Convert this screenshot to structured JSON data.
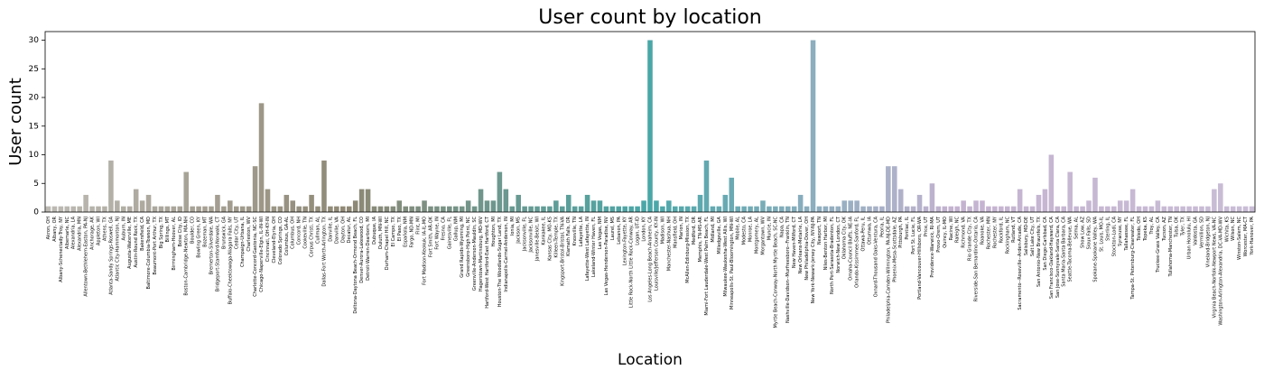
{
  "chart_data": {
    "type": "bar",
    "title": "User count by location",
    "xlabel": "Location",
    "ylabel": "User count",
    "categories": [
      "Akron, OH",
      "Albany, OR",
      "Albany-Schenectady-Troy, NY",
      "Albemarle, NC",
      "Alexandria, LA",
      "Alexandria, MN",
      "Allentown-Bethlehem-Easton, PA-NJ",
      "Anchorage, AK",
      "Appleton, WI",
      "Athens, TX",
      "Atlanta-Sandy Springs-Roswell, GA",
      "Atlantic City-Hammonton, NJ",
      "Auburn, IN",
      "Augusta-Waterville, ME",
      "Austin-Round Rock, TX",
      "Bakersfield, CA",
      "Baltimore-Columbia-Towson, MD",
      "Beaumont-Port Arthur, TX",
      "Big Spring, TX",
      "Billings, MT",
      "Birmingham-Hoover, AL",
      "Boise City, ID",
      "Boston-Cambridge-Newton, MA-NH",
      "Boulder, CO",
      "Bowling Green, KY",
      "Bozeman, MT",
      "Bremerton-Silverdale, WA",
      "Bridgeport-Stamford-Norwalk, CT",
      "Brunswick, GA",
      "Buffalo-Cheektowaga-Niagara Falls, NY",
      "Cedar City, UT",
      "Champaign-Urbana, IL",
      "Charleston, WV",
      "Charlotte-Concord-Gastonia, NC-SC",
      "Chicago-Naperville-Elgin, IL-IN-WI",
      "Cincinnati, OH-KY-IN",
      "Cleveland-Elyria, OH",
      "Colorado Springs, CO",
      "Columbus, GA-AL",
      "Columbus, OH",
      "Concord, NH",
      "Cookeville, TN",
      "Corpus Christi, TX",
      "Cullman, AL",
      "Dallas-Fort Worth-Arlington, TX",
      "Danville, IL",
      "Danville, VA",
      "Dayton, OH",
      "Decatur, AL",
      "Deltona-Daytona Beach-Ormond Beach, FL",
      "Denver-Aurora-Lakewood, CO",
      "Detroit-Warren-Dearborn, MI",
      "Dubuque, IA",
      "Duluth, MN-WI",
      "Durham-Chapel Hill, NC",
      "El Campo, TX",
      "El Paso, TX",
      "Española, NM",
      "Fargo, ND-MN",
      "Flint, MI",
      "Fort Madison-Keokuk, IA-IL-MO",
      "Fort Smith, AR-OK",
      "Fort Wayne, IN",
      "Fresno, CA",
      "Gainesville, FL",
      "Gallup, NM",
      "Grand Rapids-Wyoming, MI",
      "Greensboro-High Point, NC",
      "Greenville-Anderson-Mauldin, SC",
      "Hagerstown-Martinsburg, MD-WV",
      "Hartford-West Hartford-East Hartford, CT",
      "Houghton, MI",
      "Houston-The Woodlands-Sugar Land, TX",
      "Indianapolis-Carmel-Anderson, IN",
      "Ionia, MI",
      "Jackson, MS",
      "Jacksonville, FL",
      "Jacksonville, NC",
      "Janesville-Beloit, WI",
      "Kankakee, IL",
      "Kansas City, MO-KS",
      "Killeen-Temple, TX",
      "Kingsport-Bristol-Bristol, TN-VA",
      "Klamath Falls, OR",
      "Knoxville, TN",
      "Lafayette, LA",
      "Lafayette-West Lafayette, IN",
      "Lakeland-Winter Haven, FL",
      "Las Vegas, NM",
      "Las Vegas-Henderson-Paradise, NV",
      "Laurel, MS",
      "Lebanon, PA",
      "Lexington-Fayette, KY",
      "Little Rock-North Little Rock-Conway, AR",
      "Logan, UT-ID",
      "London, KY",
      "Los Angeles-Long Beach-Anaheim, CA",
      "Louisville/Jefferson County, KY-IN",
      "Madison, WI",
      "Manchester-Nashua, NH",
      "Mansfield, OH",
      "Marion, IN",
      "McAllen-Edinburg-Mission, TX",
      "Medford, OR",
      "Memphis, TN-MS-AR",
      "Miami-Fort Lauderdale-West Palm Beach, FL",
      "Midland, MI",
      "Milledgeville, GA",
      "Milwaukee-Waukesha-West Allis, WI",
      "Minneapolis-St. Paul-Bloomington, MN-WI",
      "Mobile, AL",
      "Modesto, CA",
      "Monroe, LA",
      "Montgomery, AL",
      "Morgantown, WV",
      "Muncie, IN",
      "Myrtle Beach-Conway-North Myrtle Beach, SC-NC",
      "Napa, CA",
      "Nashville-Davidson--Murfreesboro--Franklin, TN",
      "New Haven-Milford, CT",
      "New Orleans-Metairie, LA",
      "New Philadelphia-Dover, OH",
      "New York-Newark-Jersey City, NY-NJ-PA",
      "Newport, TN",
      "Niles-Benton Harbor, MI",
      "North Port-Sarasota-Bradenton, FL",
      "Norwich-New London, CT",
      "Oklahoma City, OK",
      "Omaha-Council Bluffs, NE-IA",
      "Orlando-Kissimmee-Sanford, FL",
      "Ottawa-Peru, IL",
      "Ottumwa, IA",
      "Oxnard-Thousand Oaks-Ventura, CA",
      "Peoria, IL",
      "Philadelphia-Camden-Wilmington, PA-NJ-DE-MD",
      "Phoenix-Mesa-Scottsdale, AZ",
      "Pittsburgh, PA",
      "Pontiac, IL",
      "Port St. Lucie, FL",
      "Portland-Vancouver-Hillsboro, OR-WA",
      "Price, UT",
      "Providence-Warwick, RI-MA",
      "Provo-Orem, UT",
      "Quincy, IL-MO",
      "Racine, WI",
      "Raleigh, NC",
      "Richmond, VA",
      "Rio Grande City, TX",
      "Riverside-San Bernardino-Ontario, CA",
      "Roanoke, VA",
      "Rochester, MN",
      "Rochester, NY",
      "Rockford, IL",
      "Rockingham, NC",
      "Rutland, VT",
      "Sacramento--Roseville--Arden-Arcade, CA",
      "Salisbury, MD-DE",
      "Salt Lake City, UT",
      "San Antonio-New Braunfels, TX",
      "San Diego-Carlsbad, CA",
      "San Francisco-Oakland-Hayward, CA",
      "San Jose-Sunnyvale-Santa Clara, CA",
      "Santa Maria-Santa Barbara, CA",
      "Seattle-Tacoma-Bellevue, WA",
      "Selma, AL",
      "Show Low, AZ",
      "Sioux Falls, SD",
      "Spokane-Spokane Valley, WA",
      "St. Louis, MO-IL",
      "Sterling, IL",
      "Stockton-Lodi, CA",
      "Syracuse, NY",
      "Tallahassee, FL",
      "Tampa-St. Petersburg-Clearwater, FL",
      "Toledo, OH",
      "Topeka, KS",
      "Troy, AL",
      "Truckee-Grass Valley, CA",
      "Tucson, AZ",
      "Tullahoma-Manchester, TN",
      "Tulsa, OK",
      "Tyler, TX",
      "Urban Honolulu, HI",
      "Valdosta, GA",
      "Vermillion, SD",
      "Vineland-Bridgeton, NJ",
      "Virginia Beach-Norfolk-Newport News, VA-NC",
      "Washington-Arlington-Alexandria, DC-VA-MD-WV",
      "Wichita, KS",
      "Wilson, NC",
      "Winston-Salem, NC",
      "Worcester, MA-CT",
      "York-Hanover, PA"
    ],
    "values": [
      1,
      1,
      1,
      1,
      1,
      1,
      3,
      1,
      1,
      1,
      9,
      2,
      1,
      1,
      4,
      2,
      3,
      1,
      1,
      1,
      1,
      1,
      7,
      1,
      1,
      1,
      1,
      3,
      1,
      2,
      1,
      1,
      1,
      8,
      19,
      4,
      1,
      1,
      3,
      2,
      1,
      1,
      3,
      1,
      9,
      1,
      1,
      1,
      1,
      2,
      4,
      4,
      1,
      1,
      1,
      1,
      2,
      1,
      1,
      1,
      2,
      1,
      1,
      1,
      1,
      1,
      1,
      2,
      1,
      4,
      2,
      2,
      7,
      4,
      1,
      3,
      1,
      1,
      1,
      1,
      1,
      2,
      1,
      3,
      1,
      1,
      3,
      2,
      2,
      1,
      1,
      1,
      1,
      1,
      1,
      2,
      30,
      2,
      1,
      2,
      1,
      1,
      1,
      1,
      3,
      9,
      1,
      1,
      3,
      6,
      1,
      1,
      1,
      1,
      2,
      1,
      1,
      1,
      1,
      1,
      3,
      1,
      30,
      1,
      1,
      1,
      1,
      2,
      2,
      2,
      1,
      1,
      1,
      1,
      8,
      8,
      4,
      1,
      1,
      3,
      1,
      5,
      1,
      1,
      1,
      1,
      2,
      1,
      2,
      2,
      1,
      1,
      1,
      1,
      1,
      4,
      1,
      1,
      3,
      4,
      10,
      1,
      1,
      7,
      1,
      1,
      2,
      6,
      1,
      1,
      1,
      2,
      2,
      4,
      1,
      1,
      1,
      2,
      1,
      1,
      1,
      1,
      1,
      1,
      1,
      1,
      4,
      5,
      1,
      1,
      1,
      1,
      1
    ],
    "palette": [
      "#bdbab4",
      "#8e8875",
      "#4aa7a8",
      "#c4b3d0",
      "#c9bdd6"
    ],
    "ylim": [
      0,
      31.5
    ],
    "yticks": [
      0,
      5,
      10,
      15,
      20,
      25,
      30
    ],
    "grid": false
  }
}
